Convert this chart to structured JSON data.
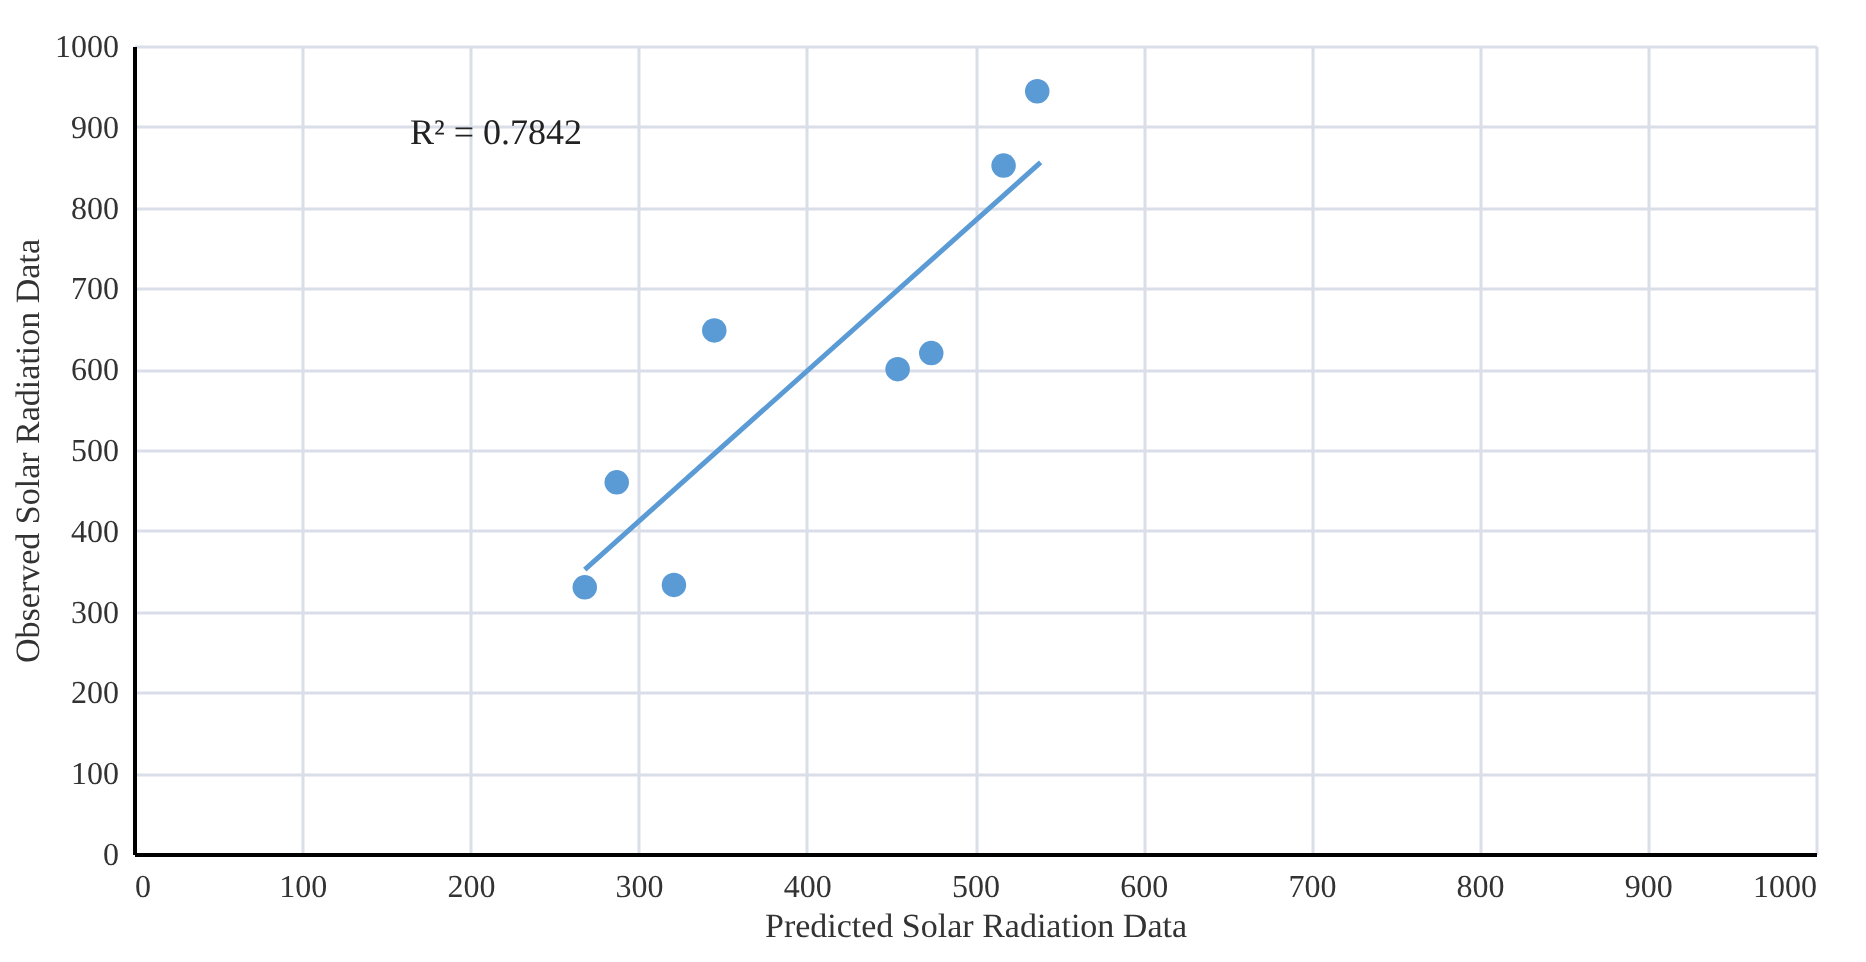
{
  "chart_data": {
    "type": "scatter",
    "xlabel": "Predicted Solar Radiation Data",
    "ylabel": "Observed Solar Radiation Data",
    "annotations": [
      "R² = 0.7842"
    ],
    "series": [
      {
        "color": "#5b9bd5",
        "marker": "circle",
        "x": [
          268,
          287,
          321,
          345,
          454,
          474,
          517,
          537
        ],
        "values": [
          330,
          460,
          333,
          648,
          600,
          620,
          852,
          944
        ]
      },
      {
        "type": "line",
        "color": "#5b9bd5",
        "x": [
          268,
          539
        ],
        "values": [
          352,
          856
        ]
      }
    ],
    "xlim": [
      0,
      1000
    ],
    "xticks": [
      0,
      100,
      200,
      300,
      400,
      500,
      600,
      700,
      800,
      900,
      1000
    ],
    "ylim": [
      0,
      1000
    ],
    "yticks": [
      0,
      100,
      200,
      300,
      400,
      500,
      600,
      700,
      800,
      900,
      1000
    ],
    "grid": true
  }
}
